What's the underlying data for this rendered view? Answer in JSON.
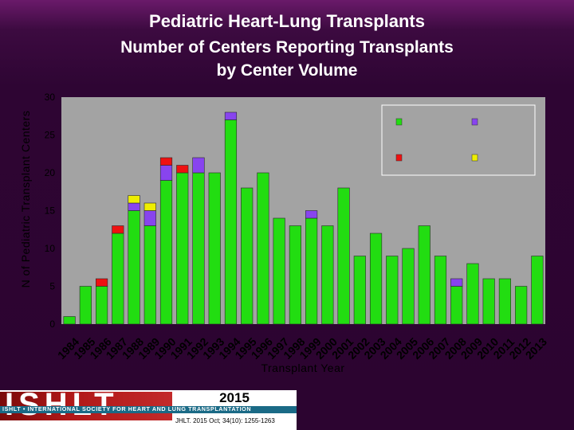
{
  "title": "Pediatric Heart-Lung Transplants",
  "subtitle_line1": "Number of Centers Reporting Transplants",
  "subtitle_line2": "by Center Volume",
  "footer": {
    "logo": "ISHLT",
    "org": "ISHLT • INTERNATIONAL SOCIETY FOR HEART AND LUNG TRANSPLANTATION",
    "year": "2015",
    "citation": "JHLT. 2015 Oct; 34(10): 1255-1263"
  },
  "colors": {
    "green": "#22dd11",
    "purple": "#8844ee",
    "red": "#ee1111",
    "yellow": "#eeee00",
    "plot_bg": "#a3a3a3"
  },
  "chart_data": {
    "type": "bar",
    "stacked": true,
    "xlabel": "Transplant Year",
    "ylabel": "N of Pediatric Transplant Centers",
    "ylim": [
      0,
      30
    ],
    "yticks": [
      0,
      5,
      10,
      15,
      20,
      25,
      30
    ],
    "grid": false,
    "legend_position": "top-right",
    "categories": [
      "1984",
      "1985",
      "1986",
      "1987",
      "1988",
      "1989",
      "1990",
      "1991",
      "1992",
      "1993",
      "1994",
      "1995",
      "1996",
      "1997",
      "1998",
      "1999",
      "2000",
      "2001",
      "2002",
      "2003",
      "2004",
      "2005",
      "2006",
      "2007",
      "2008",
      "2009",
      "2010",
      "2011",
      "2012",
      "2013"
    ],
    "series": [
      {
        "color": "green",
        "values": [
          1,
          5,
          5,
          12,
          15,
          13,
          19,
          20,
          20,
          20,
          27,
          18,
          20,
          14,
          13,
          14,
          13,
          18,
          9,
          12,
          9,
          10,
          13,
          9,
          5,
          8,
          6,
          6,
          5,
          9
        ]
      },
      {
        "color": "purple",
        "values": [
          0,
          0,
          0,
          0,
          1,
          2,
          2,
          0,
          2,
          0,
          1,
          0,
          0,
          0,
          0,
          1,
          0,
          0,
          0,
          0,
          0,
          0,
          0,
          0,
          1,
          0,
          0,
          0,
          0,
          0
        ]
      },
      {
        "color": "red",
        "values": [
          0,
          0,
          1,
          1,
          0,
          0,
          1,
          1,
          0,
          0,
          0,
          0,
          0,
          0,
          0,
          0,
          0,
          0,
          0,
          0,
          0,
          0,
          0,
          0,
          0,
          0,
          0,
          0,
          0,
          0
        ]
      },
      {
        "color": "yellow",
        "values": [
          0,
          0,
          0,
          0,
          1,
          1,
          0,
          0,
          0,
          0,
          0,
          0,
          0,
          0,
          0,
          0,
          0,
          0,
          0,
          0,
          0,
          0,
          0,
          0,
          0,
          0,
          0,
          0,
          0,
          0
        ]
      }
    ],
    "legend": [
      {
        "color": "green"
      },
      {
        "color": "purple"
      },
      {
        "color": "red"
      },
      {
        "color": "yellow"
      }
    ]
  }
}
